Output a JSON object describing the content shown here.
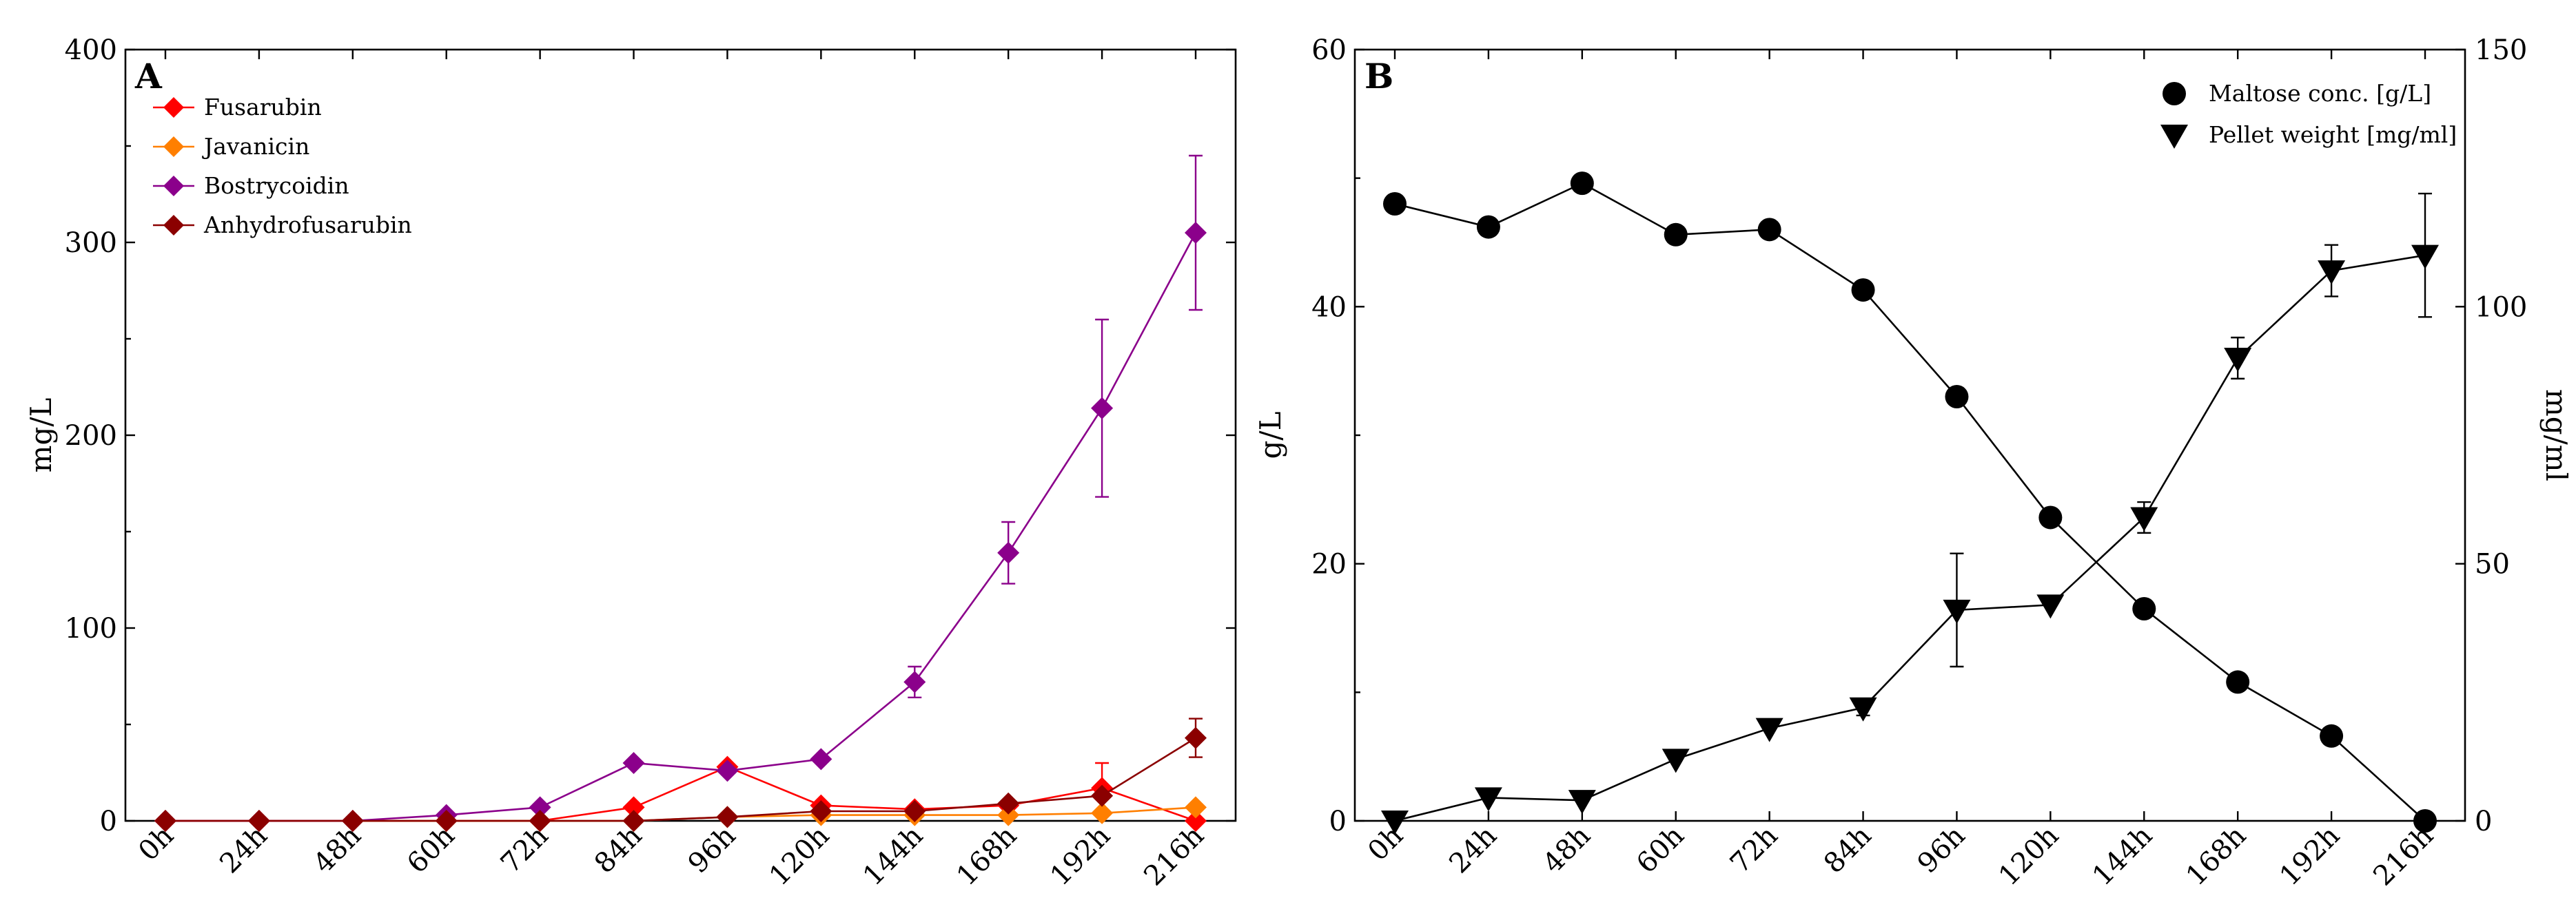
{
  "chart_data": [
    {
      "type": "line",
      "panel": "A",
      "categories": [
        "0h",
        "24h",
        "48h",
        "60h",
        "72h",
        "84h",
        "96h",
        "120h",
        "144h",
        "168h",
        "192h",
        "216h"
      ],
      "ylabel": "mg/L",
      "ylim": [
        0,
        400
      ],
      "yticks": [
        0,
        100,
        200,
        300,
        400
      ],
      "legend_position": "top-left",
      "series": [
        {
          "name": "Fusarubin",
          "color": "#ff0000",
          "marker": "diamond",
          "values": [
            0,
            0,
            0,
            0,
            0,
            7,
            28,
            8,
            6,
            8,
            17,
            0
          ],
          "errors": [
            0,
            0,
            0,
            0,
            0,
            0,
            0,
            0,
            0,
            0,
            13,
            0
          ]
        },
        {
          "name": "Javanicin",
          "color": "#ff7f00",
          "marker": "diamond",
          "values": [
            0,
            0,
            0,
            0,
            0,
            0,
            2,
            3,
            3,
            3,
            4,
            7
          ],
          "errors": [
            0,
            0,
            0,
            0,
            0,
            0,
            0,
            0,
            0,
            0,
            0,
            0
          ]
        },
        {
          "name": "Bostrycoidin",
          "color": "#8b008b",
          "marker": "diamond",
          "values": [
            0,
            0,
            0,
            3,
            7,
            30,
            26,
            32,
            72,
            139,
            214,
            305
          ],
          "errors": [
            0,
            0,
            0,
            0,
            0,
            0,
            0,
            0,
            8,
            16,
            46,
            40
          ]
        },
        {
          "name": "Anhydrofusarubin",
          "color": "#8b0000",
          "marker": "diamond",
          "values": [
            0,
            0,
            0,
            0,
            0,
            0,
            2,
            5,
            5,
            9,
            13,
            43
          ],
          "errors": [
            0,
            0,
            0,
            0,
            0,
            0,
            0,
            0,
            0,
            0,
            0,
            10
          ]
        }
      ]
    },
    {
      "type": "line",
      "panel": "B",
      "categories": [
        "0h",
        "24h",
        "48h",
        "60h",
        "72h",
        "84h",
        "96h",
        "120h",
        "144h",
        "168h",
        "192h",
        "216h"
      ],
      "ylabel": "g/L",
      "ylim": [
        0,
        60
      ],
      "yticks": [
        0,
        20,
        40,
        60
      ],
      "y2label": "mg/ml",
      "y2lim": [
        0,
        150
      ],
      "y2ticks": [
        0,
        50,
        100,
        150
      ],
      "legend_position": "top-right",
      "series": [
        {
          "name": "Maltose conc. [g/L]",
          "color": "#000000",
          "marker": "circle",
          "axis": "left",
          "values": [
            48,
            46.2,
            49.6,
            45.6,
            46,
            41.3,
            33,
            23.6,
            16.5,
            10.8,
            6.6,
            0
          ],
          "errors": [
            0,
            0,
            0,
            0,
            0,
            0,
            0,
            0,
            0,
            0,
            0,
            0
          ]
        },
        {
          "name": "Pellet weight [mg/ml]",
          "color": "#000000",
          "marker": "triangle-down",
          "axis": "right",
          "values": [
            0,
            4.5,
            4,
            12,
            18,
            22,
            41,
            42,
            59,
            90,
            107,
            110
          ],
          "errors": [
            0,
            0,
            0,
            0,
            0,
            1.5,
            11,
            0,
            3,
            4,
            5,
            12
          ]
        }
      ]
    }
  ]
}
